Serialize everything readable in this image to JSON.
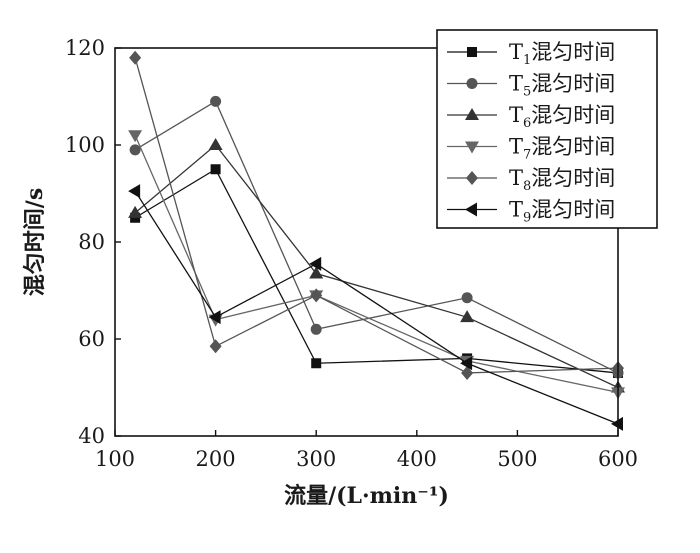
{
  "chart_data": {
    "type": "line",
    "xlabel": "流量/(L·min⁻¹)",
    "ylabel": "混匀时间/s",
    "xlim": [
      100,
      600
    ],
    "ylim": [
      40,
      120
    ],
    "xticks": [
      100,
      200,
      300,
      400,
      500,
      600
    ],
    "yticks": [
      40,
      60,
      80,
      100,
      120
    ],
    "grid": false,
    "legend_position": "top-right",
    "series": [
      {
        "name": "T1混匀时间",
        "label_main": "T",
        "label_sub": "1",
        "label_rest": "混匀时间",
        "marker": "square",
        "color": "#111111",
        "x": [
          120,
          200,
          300,
          450,
          600
        ],
        "y": [
          85,
          95,
          55,
          56,
          53
        ]
      },
      {
        "name": "T5混匀时间",
        "label_main": "T",
        "label_sub": "5",
        "label_rest": "混匀时间",
        "marker": "circle",
        "color": "#555555",
        "x": [
          120,
          200,
          300,
          450,
          600
        ],
        "y": [
          99,
          109,
          62,
          68.5,
          53
        ]
      },
      {
        "name": "T6混匀时间",
        "label_main": "T",
        "label_sub": "6",
        "label_rest": "混匀时间",
        "marker": "triangle-up",
        "color": "#333333",
        "x": [
          120,
          200,
          300,
          450,
          600
        ],
        "y": [
          86,
          100,
          73.5,
          64.5,
          50
        ]
      },
      {
        "name": "T7混匀时间",
        "label_main": "T",
        "label_sub": "7",
        "label_rest": "混匀时间",
        "marker": "triangle-down",
        "color": "#666666",
        "x": [
          120,
          200,
          300,
          450,
          600
        ],
        "y": [
          102,
          64,
          69,
          55.5,
          49
        ]
      },
      {
        "name": "T8混匀时间",
        "label_main": "T",
        "label_sub": "8",
        "label_rest": "混匀时间",
        "marker": "diamond",
        "color": "#555555",
        "x": [
          120,
          200,
          300,
          450,
          600
        ],
        "y": [
          118,
          58.5,
          69,
          53,
          54
        ]
      },
      {
        "name": "T9混匀时间",
        "label_main": "T",
        "label_sub": "9",
        "label_rest": "混匀时间",
        "marker": "triangle-left",
        "color": "#111111",
        "x": [
          120,
          200,
          300,
          450,
          600
        ],
        "y": [
          90.5,
          64.5,
          75.5,
          55,
          42.5
        ]
      }
    ]
  }
}
